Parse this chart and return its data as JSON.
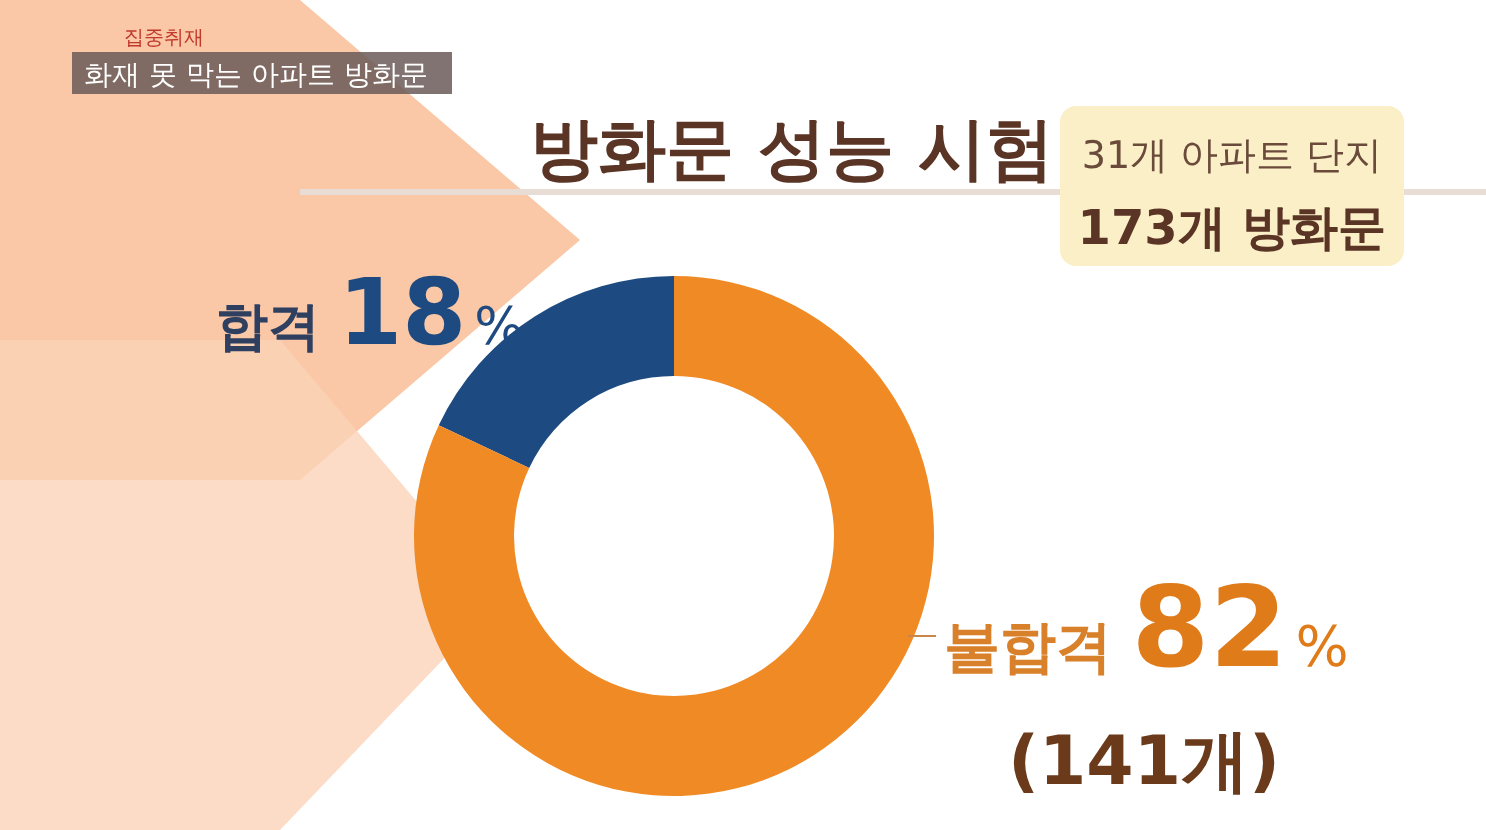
{
  "chart_data": {
    "type": "donut",
    "title": "방화문 성능 시험",
    "subtitle": "31개 아파트 단지",
    "categories": [
      "합격",
      "불합격"
    ],
    "values": [
      18,
      82
    ],
    "colors": [
      "#1d4a80",
      "#f08a24"
    ],
    "value_labels": [
      "18%",
      "82%"
    ],
    "annotations": [
      "173개 방화문",
      "(141개)",
      "집중취재",
      "화재 못 막는 아파트 방화문"
    ]
  }
}
